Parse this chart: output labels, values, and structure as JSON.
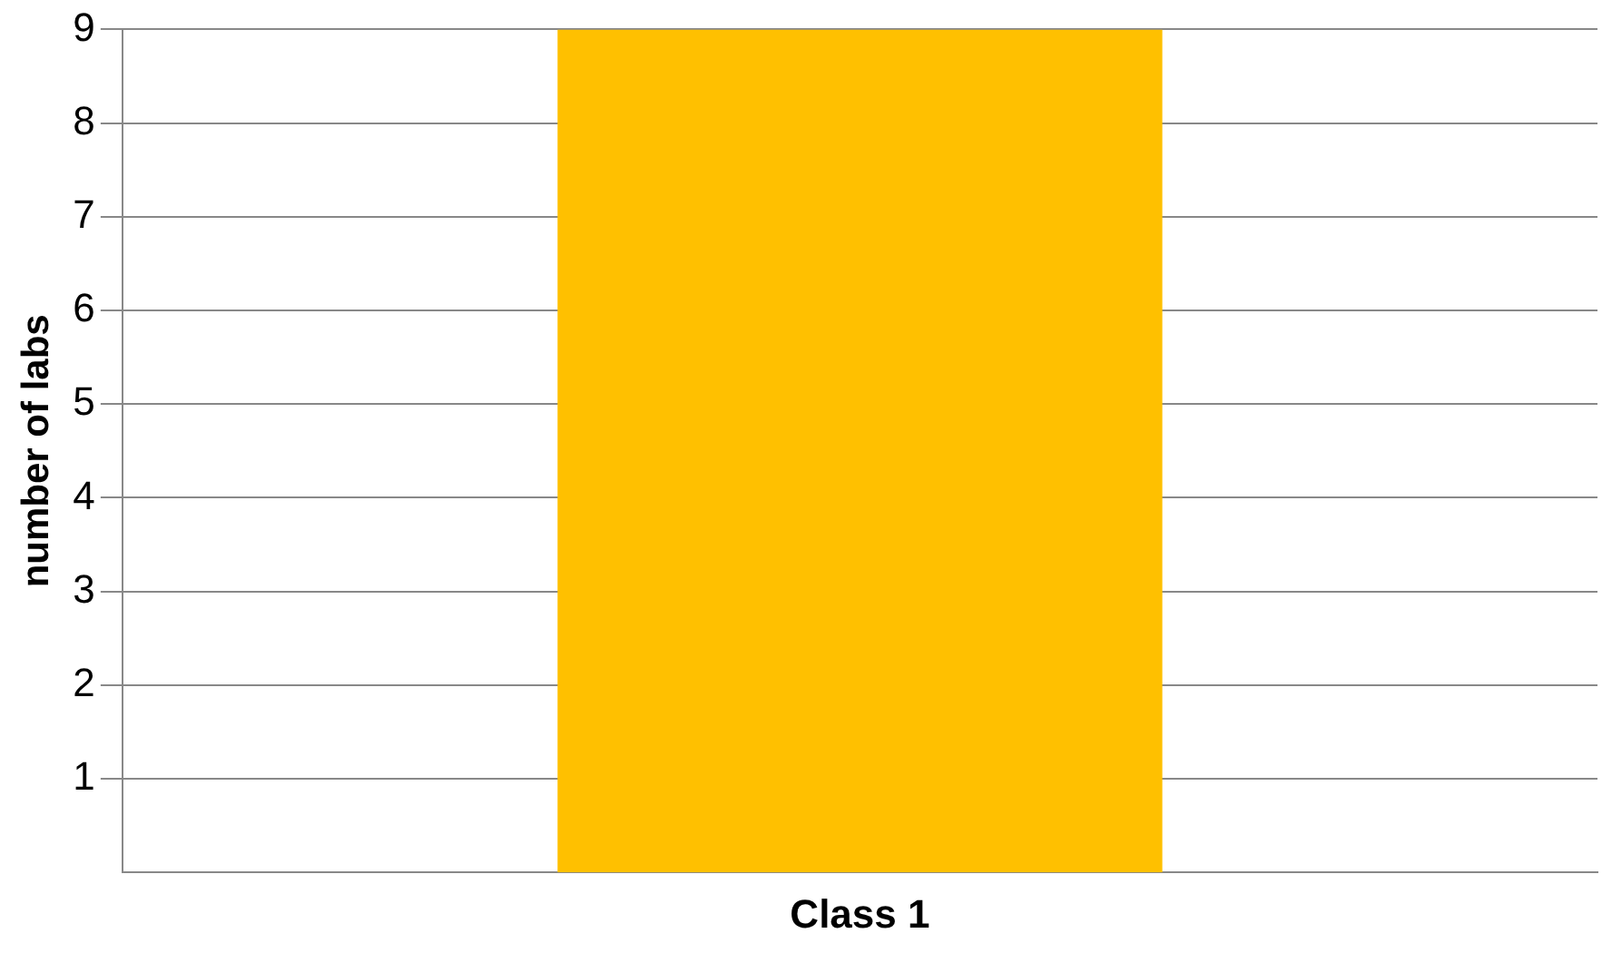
{
  "chart_data": {
    "type": "bar",
    "ylabel": "number of labs",
    "categories": [
      "Class 1"
    ],
    "values": [
      9
    ],
    "color": "#ffc000",
    "ylim": [
      0,
      9
    ],
    "yticks": [
      1,
      2,
      3,
      4,
      5,
      6,
      7,
      8,
      9
    ],
    "grid": "y"
  }
}
